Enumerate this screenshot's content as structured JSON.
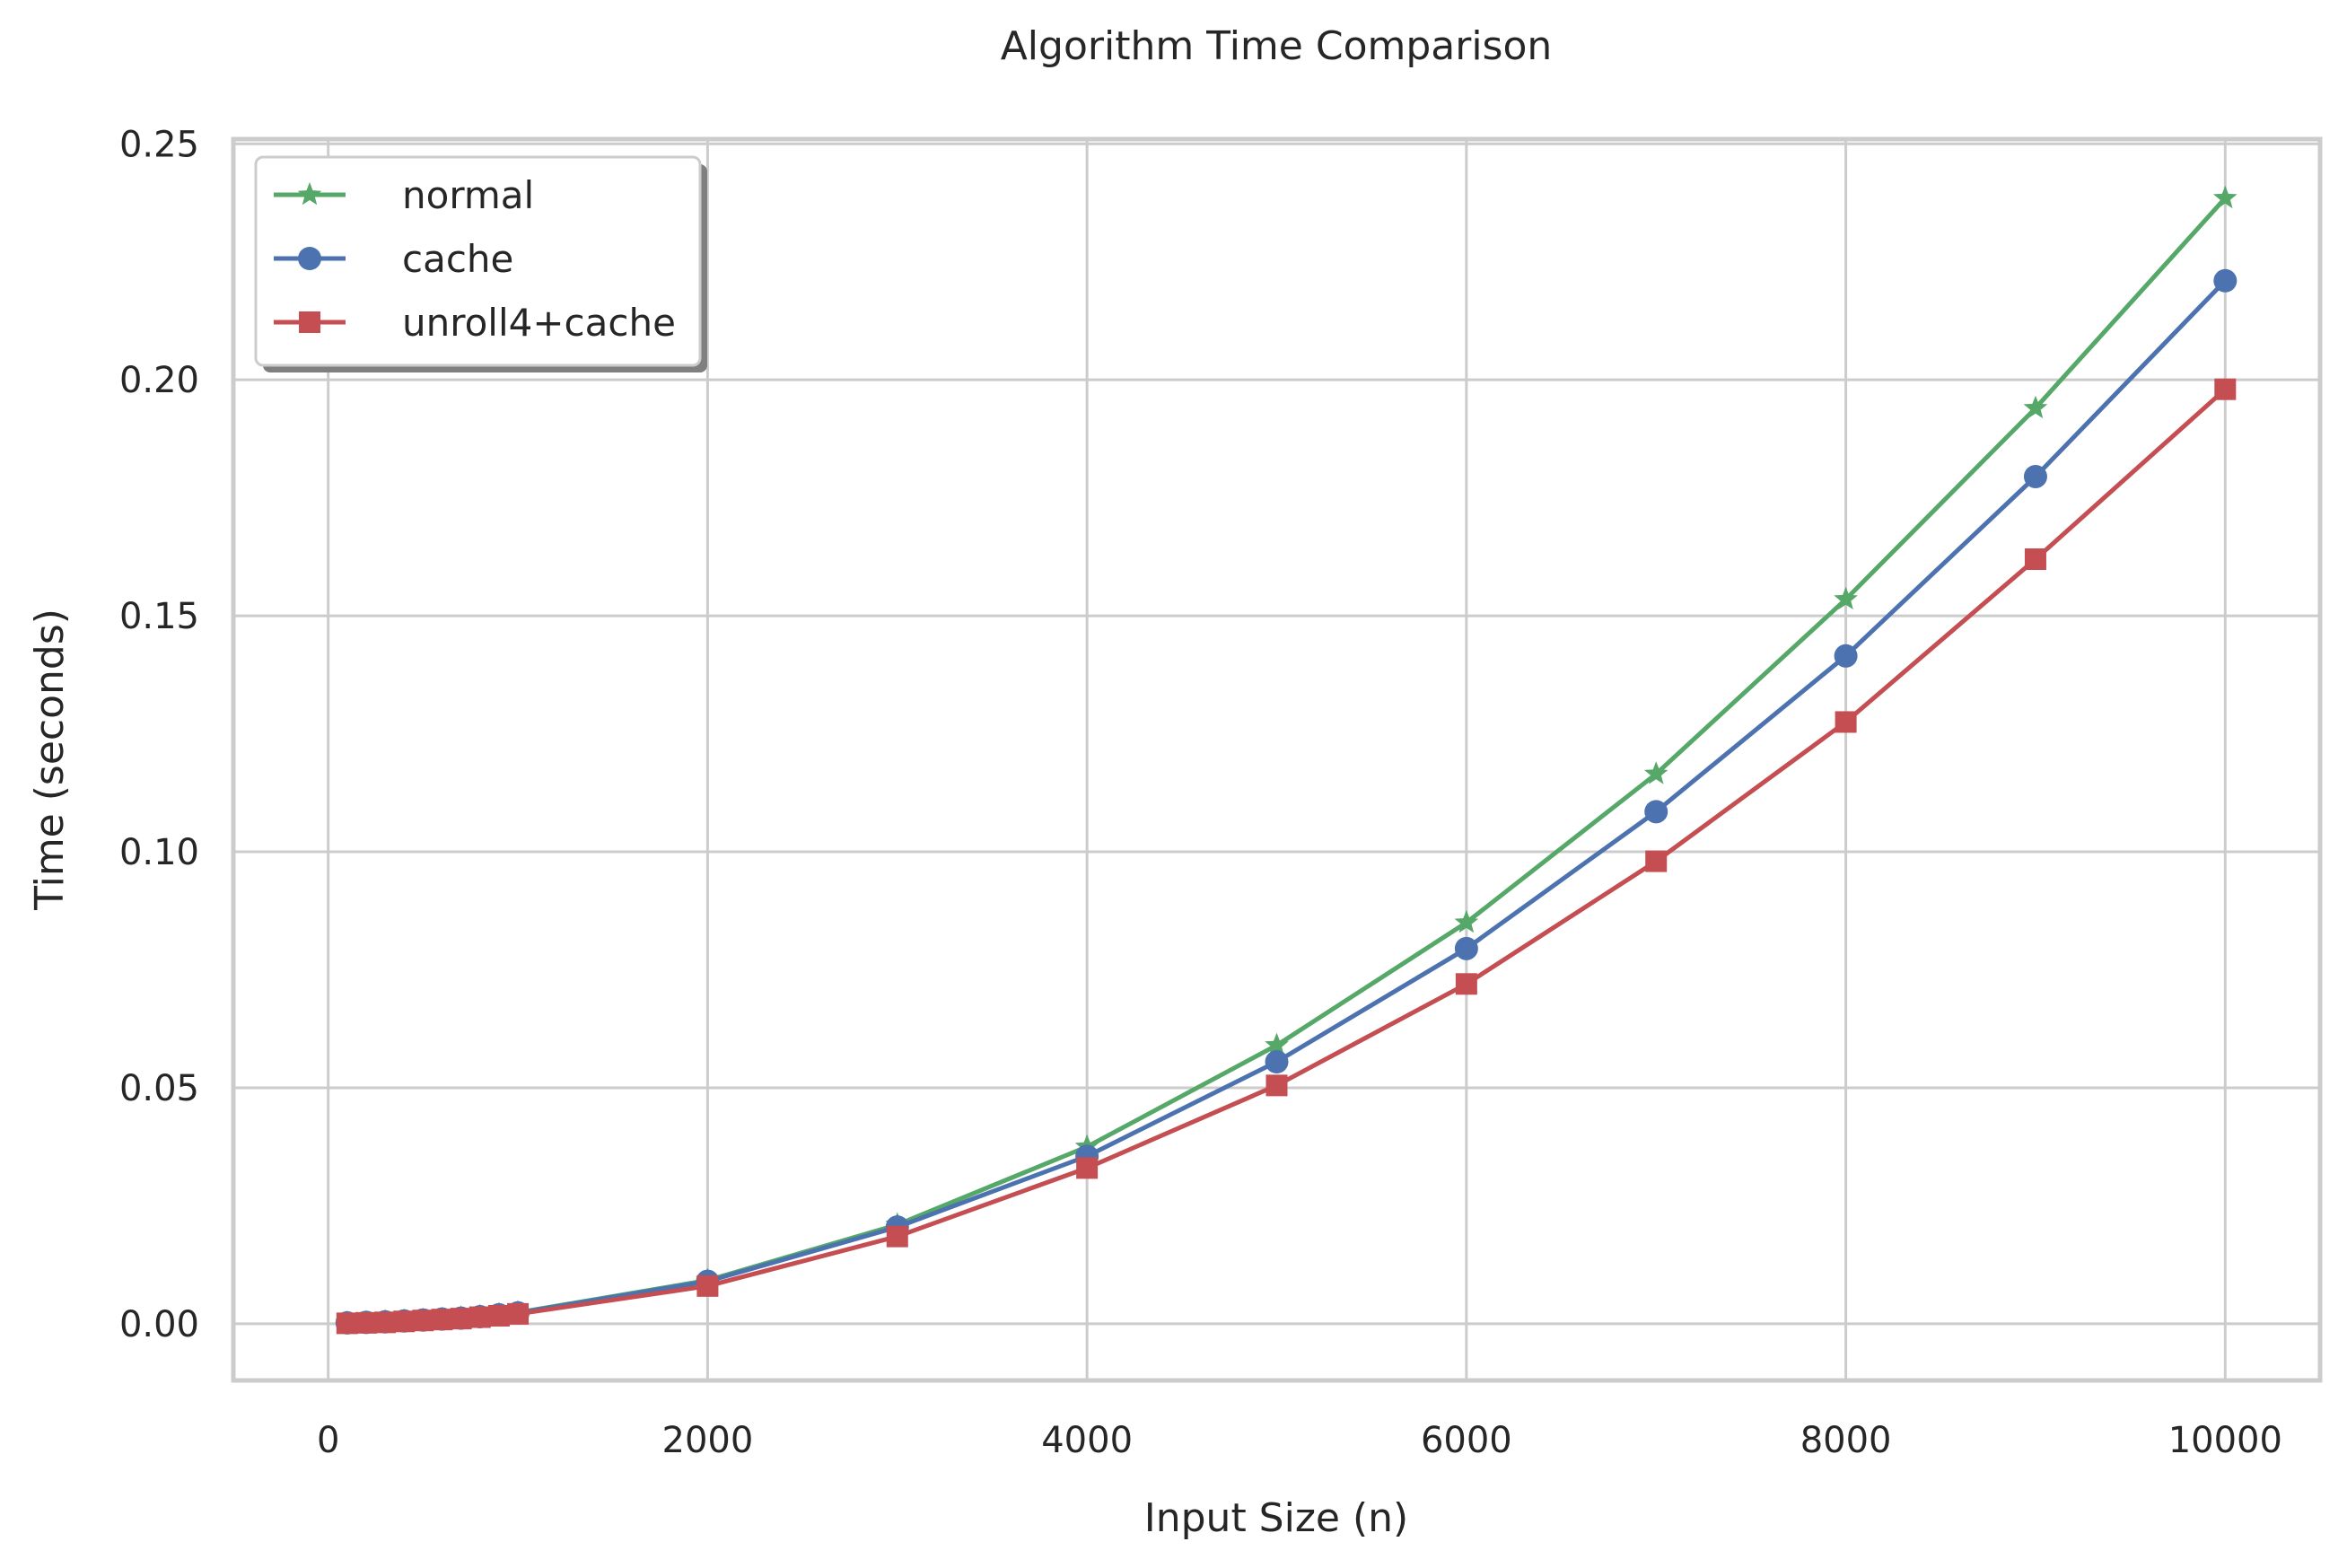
{
  "chart_data": {
    "type": "line",
    "title": "Algorithm Time Comparison",
    "xlabel": "Input Size (n)",
    "ylabel": "Time (seconds)",
    "xlim": [
      -500,
      10500
    ],
    "ylim": [
      -0.012,
      0.251
    ],
    "xticks": [
      0,
      2000,
      4000,
      6000,
      8000,
      10000
    ],
    "xtick_labels": [
      "0",
      "2000",
      "4000",
      "6000",
      "8000",
      "10000"
    ],
    "yticks": [
      0.0,
      0.05,
      0.1,
      0.15,
      0.2,
      0.25
    ],
    "ytick_labels": [
      "0.00",
      "0.05",
      "0.10",
      "0.15",
      "0.20",
      "0.25"
    ],
    "grid": true,
    "legend_position": "top-left",
    "x": [
      100,
      200,
      300,
      400,
      500,
      600,
      700,
      800,
      900,
      1000,
      2000,
      3000,
      4000,
      5000,
      6000,
      7000,
      8000,
      9000,
      10000
    ],
    "series": [
      {
        "name": "normal",
        "color": "#55a868",
        "marker": "star",
        "values": [
          0.0002,
          0.0003,
          0.0005,
          0.0006,
          0.0008,
          0.001,
          0.0013,
          0.0016,
          0.002,
          0.0024,
          0.0092,
          0.021,
          0.0375,
          0.059,
          0.085,
          0.1165,
          0.1535,
          0.194,
          0.2385
        ]
      },
      {
        "name": "cache",
        "color": "#4c72b0",
        "marker": "circle",
        "values": [
          0.0002,
          0.0003,
          0.0004,
          0.0006,
          0.0008,
          0.001,
          0.0012,
          0.0015,
          0.0019,
          0.0023,
          0.009,
          0.0205,
          0.0355,
          0.0555,
          0.0795,
          0.1085,
          0.1415,
          0.1795,
          0.221
        ]
      },
      {
        "name": "unroll4+cache",
        "color": "#c44e52",
        "marker": "square",
        "values": [
          0.0001,
          0.0002,
          0.0003,
          0.0005,
          0.0007,
          0.0009,
          0.0011,
          0.0014,
          0.0017,
          0.0021,
          0.008,
          0.0185,
          0.033,
          0.0505,
          0.072,
          0.098,
          0.1275,
          0.162,
          0.198
        ]
      }
    ]
  }
}
